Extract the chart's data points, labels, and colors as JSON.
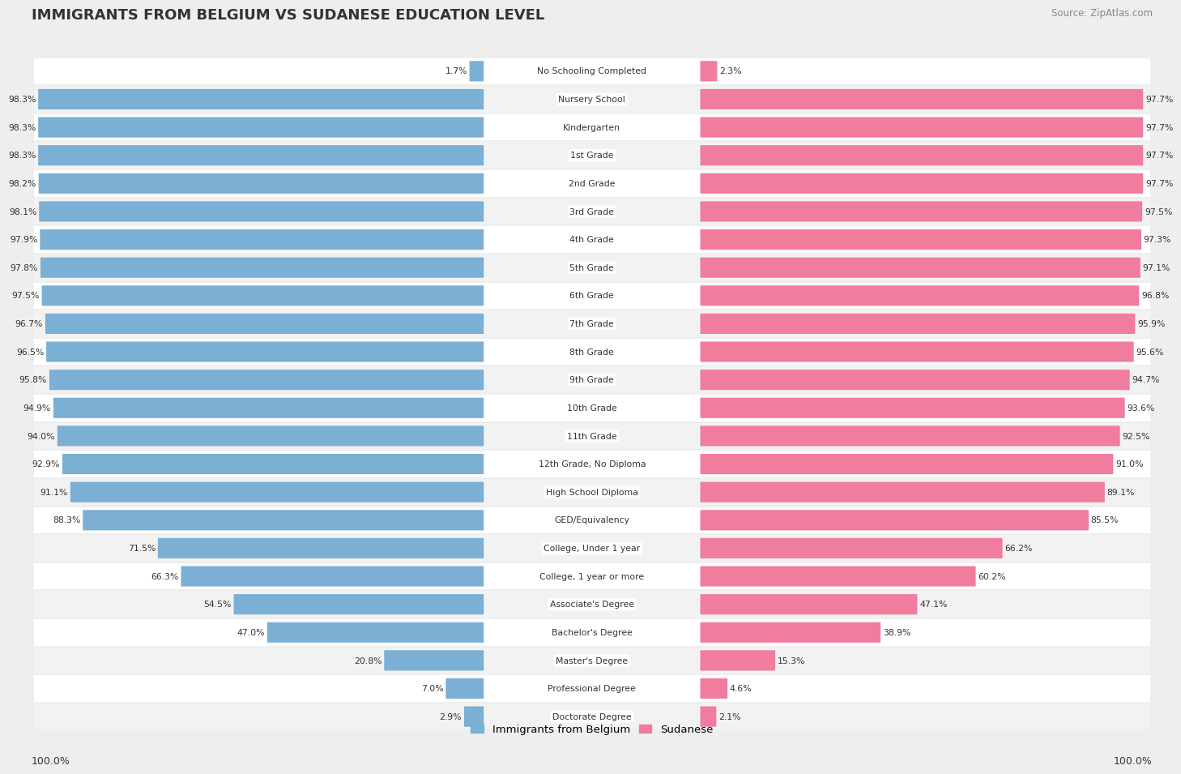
{
  "title": "IMMIGRANTS FROM BELGIUM VS SUDANESE EDUCATION LEVEL",
  "source": "Source: ZipAtlas.com",
  "categories": [
    "No Schooling Completed",
    "Nursery School",
    "Kindergarten",
    "1st Grade",
    "2nd Grade",
    "3rd Grade",
    "4th Grade",
    "5th Grade",
    "6th Grade",
    "7th Grade",
    "8th Grade",
    "9th Grade",
    "10th Grade",
    "11th Grade",
    "12th Grade, No Diploma",
    "High School Diploma",
    "GED/Equivalency",
    "College, Under 1 year",
    "College, 1 year or more",
    "Associate's Degree",
    "Bachelor's Degree",
    "Master's Degree",
    "Professional Degree",
    "Doctorate Degree"
  ],
  "belgium_values": [
    1.7,
    98.3,
    98.3,
    98.3,
    98.2,
    98.1,
    97.9,
    97.8,
    97.5,
    96.7,
    96.5,
    95.8,
    94.9,
    94.0,
    92.9,
    91.1,
    88.3,
    71.5,
    66.3,
    54.5,
    47.0,
    20.8,
    7.0,
    2.9
  ],
  "sudanese_values": [
    2.3,
    97.7,
    97.7,
    97.7,
    97.7,
    97.5,
    97.3,
    97.1,
    96.8,
    95.9,
    95.6,
    94.7,
    93.6,
    92.5,
    91.0,
    89.1,
    85.5,
    66.2,
    60.2,
    47.1,
    38.9,
    15.3,
    4.6,
    2.1
  ],
  "belgium_color": "#7bafd4",
  "sudanese_color": "#f07c9e",
  "bg_color": "#eeeeee",
  "row_color_even": "#ffffff",
  "row_color_odd": "#f2f2f2",
  "legend_100_left": "100.0%",
  "legend_100_right": "100.0%"
}
